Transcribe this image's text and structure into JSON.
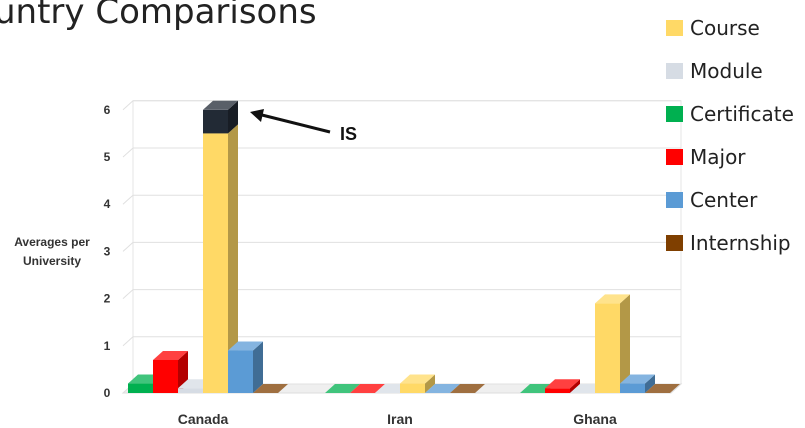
{
  "page": {
    "title": "untry Comparisons",
    "annotation": "IS"
  },
  "chart_data": {
    "type": "bar",
    "title": "untry Comparisons",
    "xlabel": "",
    "ylabel": "Averages per University",
    "ylim": [
      0,
      6
    ],
    "yticks": [
      "0",
      "1",
      "2",
      "3",
      "4",
      "5",
      "6"
    ],
    "categories": [
      "Canada",
      "Iran",
      "Ghana"
    ],
    "legend_position": "right",
    "annotations": [
      {
        "text": "IS",
        "points_to": "Canada top segment"
      }
    ],
    "series": [
      {
        "name": "Certificate",
        "color": "#00b050",
        "values": [
          0.2,
          0.0,
          0.0
        ]
      },
      {
        "name": "Major",
        "color": "#ff0000",
        "values": [
          0.7,
          0.0,
          0.1
        ]
      },
      {
        "name": "Module",
        "color": "#d6dce4",
        "values": [
          0.1,
          0.0,
          0.0
        ]
      },
      {
        "name": "Course",
        "color": "#ffd966",
        "values": [
          5.5,
          0.2,
          1.9
        ],
        "stack_top": {
          "value": 0.5,
          "color": "#222a35"
        }
      },
      {
        "name": "Center",
        "color": "#5b9bd5",
        "values": [
          0.9,
          0.0,
          0.2
        ]
      },
      {
        "name": "Internship",
        "color": "#7f3f00",
        "values": [
          0.0,
          0.0,
          0.0
        ]
      }
    ],
    "legend": [
      {
        "label": "Course",
        "color": "#ffd966",
        "icon": "square-swatch"
      },
      {
        "label": "Module",
        "color": "#d6dce4",
        "icon": "square-swatch"
      },
      {
        "label": "Certificate",
        "color": "#00b050",
        "icon": "square-swatch"
      },
      {
        "label": "Major",
        "color": "#ff0000",
        "icon": "square-swatch"
      },
      {
        "label": "Center",
        "color": "#5b9bd5",
        "icon": "square-swatch"
      },
      {
        "label": "Internship",
        "color": "#7f3f00",
        "icon": "square-swatch"
      }
    ]
  }
}
